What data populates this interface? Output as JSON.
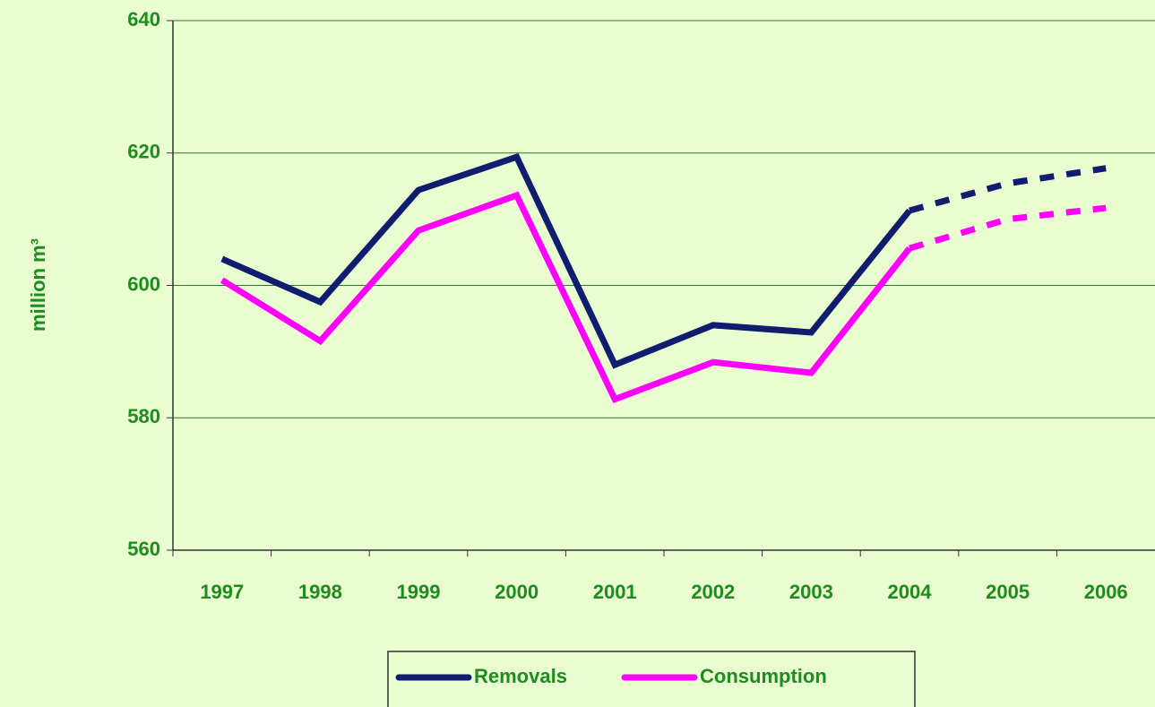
{
  "chart_data": {
    "type": "line",
    "ylabel": "million m³",
    "categories": [
      "1997",
      "1998",
      "1999",
      "2000",
      "2001",
      "2002",
      "2003",
      "2004",
      "2005",
      "2006"
    ],
    "series": [
      {
        "name": "Removals",
        "color": "#101c6e",
        "values": [
          604,
          597.5,
          614.4,
          619.4,
          588,
          594,
          592.9,
          611.3,
          615.4,
          617.7
        ]
      },
      {
        "name": "Consumption",
        "color": "#ff00ff",
        "values": [
          600.8,
          591.6,
          608.3,
          613.6,
          582.8,
          588.4,
          586.8,
          605.6,
          610,
          611.7
        ]
      }
    ],
    "dashed_from": "2004",
    "ylim": [
      560,
      640
    ],
    "yticks": [
      560,
      580,
      600,
      620,
      640
    ],
    "grid": true,
    "legend": "bottom"
  }
}
